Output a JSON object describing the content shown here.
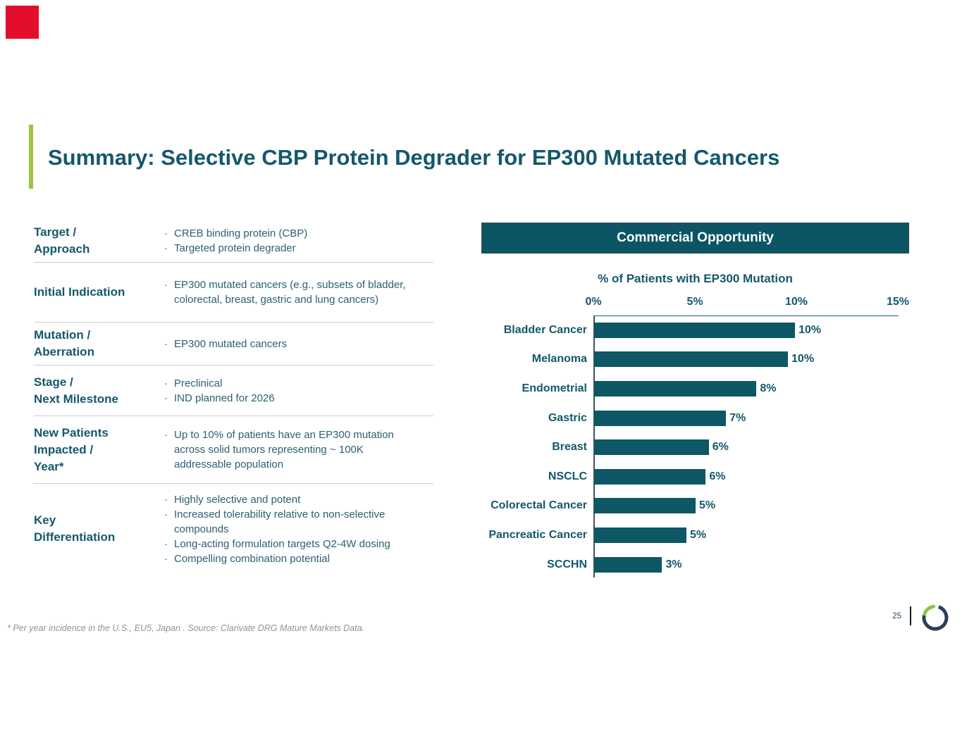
{
  "slide": {
    "title": "Summary: Selective CBP Protein Degrader for EP300 Mutated Cancers",
    "page_number": "25",
    "footnote": "* Per year incidence in the U.S., EU5, Japan . Source: Clarivate DRG Mature Markets Data."
  },
  "colors": {
    "accent_red": "#E30E2C",
    "accent_green": "#9DC343",
    "teal_text": "#14586B",
    "bar_fill": "#0E5765",
    "banner_background": "#0C5564",
    "logo_navy": "#2B4055",
    "logo_green": "#8DC63F"
  },
  "summary_table": {
    "rows": [
      {
        "label": "Target /\nApproach",
        "bullets": [
          "CREB binding protein (CBP)",
          "Targeted protein degrader"
        ]
      },
      {
        "label": "Initial Indication",
        "bullets": [
          "EP300 mutated cancers (e.g., subsets of bladder, colorectal, breast, gastric and lung cancers)"
        ]
      },
      {
        "label": "Mutation /\nAberration",
        "bullets": [
          "EP300 mutated cancers"
        ]
      },
      {
        "label": "Stage /\nNext Milestone",
        "bullets": [
          "Preclinical",
          "IND planned for 2026"
        ]
      },
      {
        "label": "New Patients\nImpacted /\nYear*",
        "bullets": [
          "Up to 10% of patients have an EP300 mutation across solid tumors representing ~ 100K addressable population"
        ]
      },
      {
        "label": "Key\nDifferentiation",
        "bullets": [
          "Highly selective and potent",
          "Increased tolerability relative to non-selective compounds",
          "Long-acting formulation targets Q2-4W dosing",
          "Compelling combination potential"
        ]
      }
    ]
  },
  "chart_data": {
    "type": "bar",
    "orientation": "horizontal",
    "panel_header": "Commercial Opportunity",
    "title": "% of Patients with EP300 Mutation",
    "categories": [
      "Bladder Cancer",
      "Melanoma",
      "Endometrial",
      "Gastric",
      "Breast",
      "NSCLC",
      "Colorectal Cancer",
      "Pancreatic Cancer",
      "SCCHN"
    ],
    "values": [
      10,
      10,
      8,
      7,
      6,
      6,
      5,
      5,
      3
    ],
    "value_labels": [
      "10%",
      "10%",
      "8%",
      "7%",
      "6%",
      "6%",
      "5%",
      "5%",
      "3%"
    ],
    "bar_pct_estimates": [
      9.9,
      9.55,
      8.0,
      6.5,
      5.65,
      5.5,
      5.0,
      4.55,
      3.35
    ],
    "x_ticks": [
      "0%",
      "5%",
      "10%",
      "15%"
    ],
    "xlim": [
      0,
      15
    ],
    "grid": false,
    "legend": false
  }
}
